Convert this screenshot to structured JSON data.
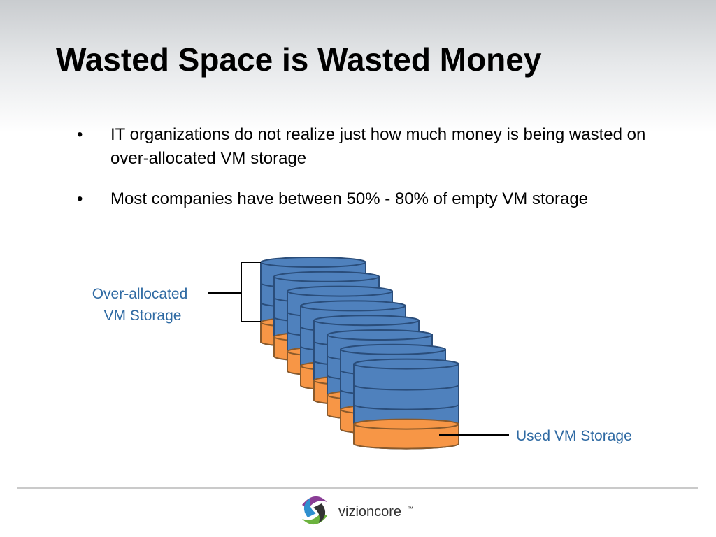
{
  "title": "Wasted Space is Wasted Money",
  "bullets": [
    "IT organizations do not realize just how much money is being wasted on over-allocated VM storage",
    "Most companies have between 50% - 80% of empty VM storage"
  ],
  "diagram": {
    "over_label_line1": "Over-allocated",
    "over_label_line2": "VM Storage",
    "used_label": "Used VM Storage"
  },
  "footer": {
    "logo_text": "vizioncore",
    "logo_mark": "™"
  }
}
